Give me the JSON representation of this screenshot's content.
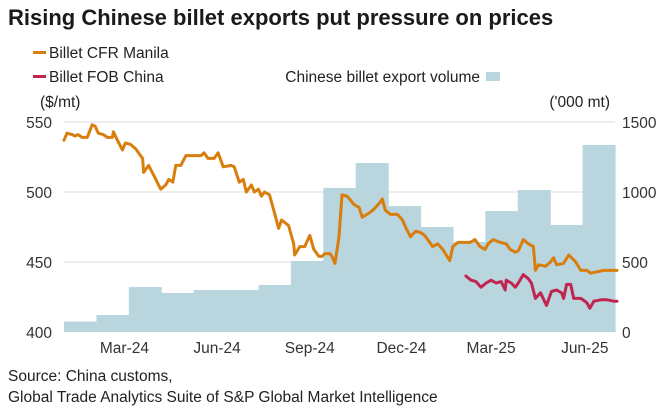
{
  "chart_data": {
    "type": "line+bar",
    "title": "Rising Chinese billet exports put pressure on prices",
    "source_lines": [
      "Source: China customs,",
      "Global Trade Analytics Suite of S&P Global Market Intelligence"
    ],
    "x_unit": "days since 2024-01-01",
    "x_range": [
      0,
      547
    ],
    "x_ticks": [
      {
        "label": "Mar-24",
        "day": 60
      },
      {
        "label": "Jun-24",
        "day": 152
      },
      {
        "label": "Sep-24",
        "day": 244
      },
      {
        "label": "Dec-24",
        "day": 335
      },
      {
        "label": "Mar-25",
        "day": 424
      },
      {
        "label": "Jun-25",
        "day": 517
      }
    ],
    "left_axis": {
      "label": "($/mt)",
      "range": [
        400,
        550
      ],
      "ticks": [
        "400",
        "450",
        "500",
        "550"
      ]
    },
    "right_axis": {
      "label": "('000 mt)",
      "range": [
        0,
        1500
      ],
      "ticks": [
        "0",
        "500",
        "1000",
        "1500"
      ]
    },
    "grid": true,
    "legend": {
      "left": [
        "Billet CFR Manila",
        "Billet FOB China"
      ],
      "right": "Chinese billet export volume"
    },
    "colors": {
      "cfr": "#d97d0d",
      "fob": "#c0244f",
      "volume": "#b9d6de",
      "grid": "#dddddd"
    },
    "volume": {
      "name": "Chinese billet export volume",
      "months": [
        "Jan-24",
        "Feb-24",
        "Mar-24",
        "Apr-24",
        "May-24",
        "Jun-24",
        "Jul-24",
        "Aug-24",
        "Sep-24",
        "Oct-24",
        "Nov-24",
        "Dec-24",
        "Jan-25",
        "Feb-25",
        "Mar-25",
        "Apr-25",
        "May-25"
      ],
      "values": [
        75,
        121,
        321,
        279,
        300,
        300,
        336,
        507,
        1029,
        1207,
        900,
        750,
        643,
        864,
        1014,
        764,
        1336
      ]
    },
    "series": [
      {
        "name": "Billet CFR Manila",
        "points": [
          [
            0,
            537
          ],
          [
            3,
            542
          ],
          [
            8,
            541
          ],
          [
            11,
            540
          ],
          [
            14,
            541
          ],
          [
            18,
            539
          ],
          [
            23,
            539
          ],
          [
            28,
            548
          ],
          [
            31,
            547
          ],
          [
            34,
            542
          ],
          [
            39,
            541
          ],
          [
            43,
            539
          ],
          [
            48,
            539
          ],
          [
            49,
            543
          ],
          [
            53,
            537
          ],
          [
            58,
            530
          ],
          [
            61,
            535
          ],
          [
            66,
            534
          ],
          [
            71,
            531
          ],
          [
            78,
            524
          ],
          [
            79,
            514
          ],
          [
            84,
            519
          ],
          [
            89,
            512
          ],
          [
            96,
            502
          ],
          [
            101,
            505
          ],
          [
            104,
            509
          ],
          [
            108,
            507
          ],
          [
            111,
            519
          ],
          [
            116,
            519
          ],
          [
            121,
            526
          ],
          [
            129,
            526
          ],
          [
            136,
            526
          ],
          [
            139,
            528
          ],
          [
            143,
            524
          ],
          [
            149,
            524
          ],
          [
            153,
            528
          ],
          [
            158,
            518
          ],
          [
            166,
            519
          ],
          [
            169,
            518
          ],
          [
            174,
            507
          ],
          [
            178,
            509
          ],
          [
            181,
            500
          ],
          [
            186,
            505
          ],
          [
            189,
            500
          ],
          [
            193,
            502
          ],
          [
            196,
            497
          ],
          [
            199,
            500
          ],
          [
            204,
            498
          ],
          [
            209,
            485
          ],
          [
            213,
            474
          ],
          [
            216,
            480
          ],
          [
            223,
            476
          ],
          [
            228,
            463
          ],
          [
            229,
            455
          ],
          [
            234,
            461
          ],
          [
            239,
            461
          ],
          [
            244,
            469
          ],
          [
            248,
            459
          ],
          [
            253,
            454
          ],
          [
            256,
            454
          ],
          [
            259,
            456
          ],
          [
            264,
            456
          ],
          [
            266,
            454
          ],
          [
            269,
            449
          ],
          [
            273,
            468
          ],
          [
            276,
            498
          ],
          [
            281,
            497
          ],
          [
            288,
            491
          ],
          [
            293,
            489
          ],
          [
            296,
            482
          ],
          [
            303,
            485
          ],
          [
            308,
            488
          ],
          [
            313,
            492
          ],
          [
            316,
            495
          ],
          [
            319,
            487
          ],
          [
            324,
            484
          ],
          [
            331,
            484
          ],
          [
            336,
            480
          ],
          [
            339,
            475
          ],
          [
            344,
            468
          ],
          [
            349,
            472
          ],
          [
            354,
            471
          ],
          [
            358,
            469
          ],
          [
            363,
            464
          ],
          [
            366,
            461
          ],
          [
            371,
            463
          ],
          [
            376,
            459
          ],
          [
            383,
            451
          ],
          [
            386,
            461
          ],
          [
            391,
            464
          ],
          [
            403,
            464
          ],
          [
            408,
            466
          ],
          [
            413,
            461
          ],
          [
            418,
            459
          ],
          [
            421,
            463
          ],
          [
            426,
            466
          ],
          [
            433,
            464
          ],
          [
            439,
            463
          ],
          [
            443,
            459
          ],
          [
            448,
            457
          ],
          [
            451,
            458
          ],
          [
            456,
            466
          ],
          [
            461,
            463
          ],
          [
            466,
            461
          ],
          [
            468,
            444
          ],
          [
            471,
            448
          ],
          [
            478,
            447
          ],
          [
            483,
            450
          ],
          [
            486,
            453
          ],
          [
            489,
            448
          ],
          [
            496,
            449
          ],
          [
            501,
            455
          ],
          [
            504,
            453
          ],
          [
            508,
            450
          ],
          [
            513,
            444
          ],
          [
            519,
            444
          ],
          [
            523,
            442
          ],
          [
            529,
            443
          ],
          [
            536,
            444
          ],
          [
            543,
            444
          ],
          [
            549,
            444
          ]
        ]
      },
      {
        "name": "Billet FOB China",
        "points": [
          [
            399,
            440
          ],
          [
            404,
            437
          ],
          [
            409,
            436
          ],
          [
            414,
            432
          ],
          [
            419,
            435
          ],
          [
            424,
            437
          ],
          [
            429,
            435
          ],
          [
            434,
            436
          ],
          [
            438,
            430
          ],
          [
            439,
            437
          ],
          [
            444,
            435
          ],
          [
            448,
            432
          ],
          [
            451,
            435
          ],
          [
            456,
            441
          ],
          [
            461,
            438
          ],
          [
            464,
            435
          ],
          [
            468,
            424
          ],
          [
            473,
            428
          ],
          [
            479,
            419
          ],
          [
            484,
            429
          ],
          [
            489,
            430
          ],
          [
            494,
            428
          ],
          [
            496,
            424
          ],
          [
            499,
            434
          ],
          [
            503,
            434
          ],
          [
            506,
            424
          ],
          [
            513,
            424
          ],
          [
            519,
            421
          ],
          [
            522,
            417
          ],
          [
            526,
            422
          ],
          [
            533,
            423
          ],
          [
            539,
            423
          ],
          [
            546,
            422
          ],
          [
            549,
            422
          ]
        ]
      }
    ]
  }
}
